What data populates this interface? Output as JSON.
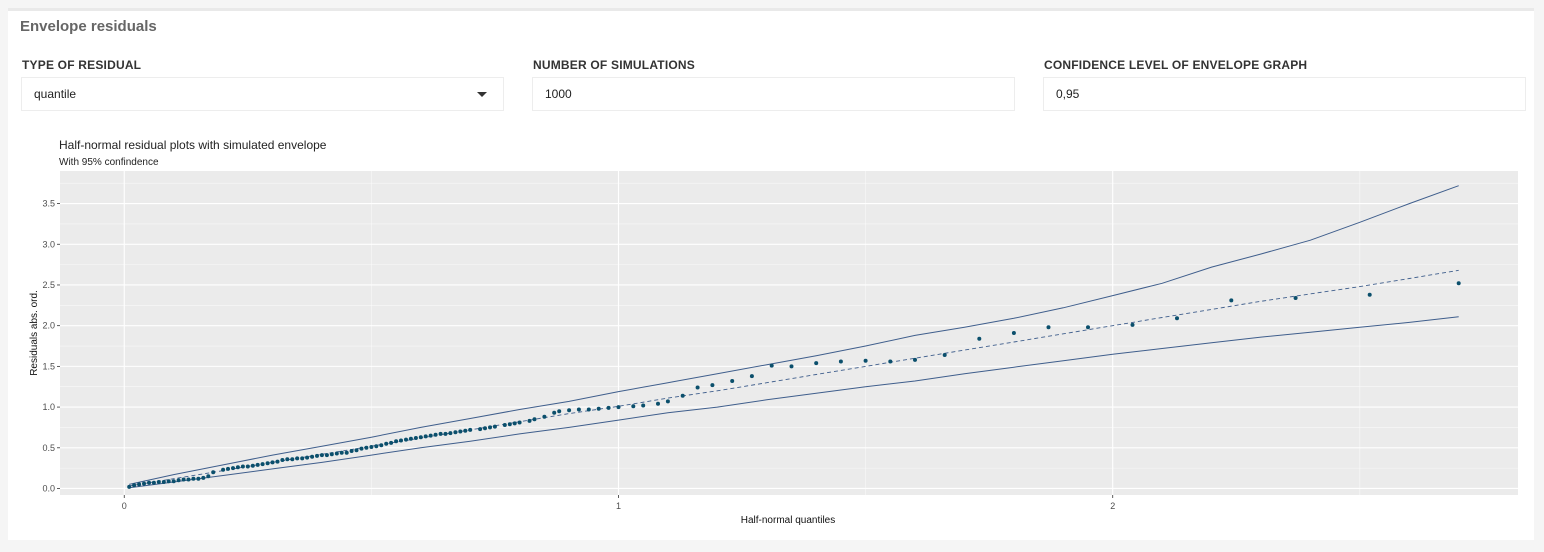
{
  "panel": {
    "title": "Envelope residuals"
  },
  "controls": {
    "residual_type": {
      "label": "TYPE OF RESIDUAL",
      "value": "quantile"
    },
    "simulations": {
      "label": "NUMBER OF SIMULATIONS",
      "value": "1000"
    },
    "confidence": {
      "label": "CONFIDENCE LEVEL OF ENVELOPE GRAPH",
      "value": "0,95"
    }
  },
  "chart_data": {
    "type": "scatter",
    "title": "Half-normal residual plots with simulated envelope",
    "subtitle": "With 95% confindence",
    "xlabel": "Half-normal quantiles",
    "ylabel": "Residuals abs. ord.",
    "xlim": [
      -0.13,
      2.82
    ],
    "ylim": [
      -0.08,
      3.9
    ],
    "x_ticks": [
      0,
      1,
      2
    ],
    "x_tick_labels": [
      "0",
      "1",
      "2"
    ],
    "y_ticks": [
      0,
      0.5,
      1,
      1.5,
      2,
      2.5,
      3,
      3.5
    ],
    "y_tick_labels": [
      "0.0",
      "0.5",
      "1.0",
      "1.5",
      "2.0",
      "2.5",
      "3.0",
      "3.5"
    ],
    "grid": true,
    "colors": {
      "points": "#0b4f6c",
      "envelope": "#3f5e8c",
      "panel_bg": "#ebebeb",
      "grid": "#ffffff"
    },
    "points": {
      "x": [
        0.01,
        0.02,
        0.03,
        0.04,
        0.05,
        0.06,
        0.07,
        0.08,
        0.09,
        0.1,
        0.11,
        0.12,
        0.13,
        0.14,
        0.15,
        0.16,
        0.17,
        0.18,
        0.2,
        0.21,
        0.22,
        0.23,
        0.24,
        0.25,
        0.26,
        0.27,
        0.28,
        0.29,
        0.3,
        0.31,
        0.32,
        0.33,
        0.34,
        0.35,
        0.36,
        0.37,
        0.38,
        0.39,
        0.4,
        0.41,
        0.42,
        0.43,
        0.44,
        0.45,
        0.46,
        0.47,
        0.48,
        0.49,
        0.5,
        0.51,
        0.52,
        0.53,
        0.54,
        0.55,
        0.56,
        0.57,
        0.58,
        0.59,
        0.6,
        0.61,
        0.62,
        0.63,
        0.64,
        0.65,
        0.66,
        0.67,
        0.68,
        0.69,
        0.7,
        0.72,
        0.73,
        0.74,
        0.75,
        0.77,
        0.78,
        0.79,
        0.8,
        0.82,
        0.83,
        0.85,
        0.87,
        0.88,
        0.9,
        0.92,
        0.94,
        0.96,
        0.98,
        1.0,
        1.03,
        1.05,
        1.08,
        1.1,
        1.13,
        1.16,
        1.19,
        1.23,
        1.27,
        1.31,
        1.35,
        1.4,
        1.45,
        1.5,
        1.55,
        1.6,
        1.66,
        1.73,
        1.8,
        1.87,
        1.95,
        2.04,
        2.13,
        2.24,
        2.37,
        2.52,
        2.7
      ],
      "y": [
        0.02,
        0.04,
        0.05,
        0.06,
        0.07,
        0.07,
        0.08,
        0.08,
        0.09,
        0.09,
        0.1,
        0.11,
        0.11,
        0.12,
        0.12,
        0.13,
        0.15,
        0.2,
        0.23,
        0.24,
        0.25,
        0.26,
        0.27,
        0.27,
        0.28,
        0.29,
        0.3,
        0.31,
        0.32,
        0.33,
        0.35,
        0.36,
        0.36,
        0.37,
        0.37,
        0.38,
        0.39,
        0.4,
        0.41,
        0.41,
        0.42,
        0.43,
        0.44,
        0.44,
        0.46,
        0.47,
        0.49,
        0.5,
        0.51,
        0.52,
        0.53,
        0.55,
        0.56,
        0.58,
        0.59,
        0.6,
        0.61,
        0.62,
        0.63,
        0.64,
        0.65,
        0.66,
        0.67,
        0.67,
        0.68,
        0.69,
        0.7,
        0.71,
        0.72,
        0.73,
        0.74,
        0.75,
        0.76,
        0.78,
        0.79,
        0.8,
        0.81,
        0.83,
        0.85,
        0.88,
        0.93,
        0.95,
        0.96,
        0.97,
        0.97,
        0.98,
        0.99,
        1.0,
        1.01,
        1.02,
        1.04,
        1.07,
        1.14,
        1.24,
        1.27,
        1.32,
        1.38,
        1.51,
        1.5,
        1.54,
        1.56,
        1.57,
        1.56,
        1.58,
        1.64,
        1.84,
        1.91,
        1.98,
        1.98,
        2.01,
        2.09,
        2.31,
        2.34,
        2.38,
        2.52
      ]
    },
    "envelope": {
      "x": [
        0.01,
        0.1,
        0.2,
        0.3,
        0.4,
        0.5,
        0.6,
        0.7,
        0.8,
        0.9,
        1.0,
        1.1,
        1.2,
        1.3,
        1.4,
        1.5,
        1.6,
        1.7,
        1.8,
        1.9,
        2.0,
        2.1,
        2.2,
        2.3,
        2.4,
        2.5,
        2.6,
        2.7
      ],
      "upper": [
        0.05,
        0.17,
        0.29,
        0.41,
        0.52,
        0.63,
        0.75,
        0.86,
        0.97,
        1.07,
        1.19,
        1.3,
        1.41,
        1.52,
        1.63,
        1.75,
        1.88,
        1.98,
        2.09,
        2.22,
        2.37,
        2.52,
        2.72,
        2.88,
        3.05,
        3.27,
        3.5,
        3.72
      ],
      "median": [
        0.03,
        0.12,
        0.22,
        0.32,
        0.42,
        0.52,
        0.62,
        0.72,
        0.82,
        0.92,
        1.01,
        1.11,
        1.2,
        1.3,
        1.4,
        1.5,
        1.6,
        1.7,
        1.8,
        1.9,
        2.0,
        2.1,
        2.2,
        2.3,
        2.39,
        2.48,
        2.58,
        2.68
      ],
      "lower": [
        0.01,
        0.08,
        0.16,
        0.24,
        0.32,
        0.41,
        0.5,
        0.58,
        0.67,
        0.75,
        0.84,
        0.93,
        1.0,
        1.09,
        1.17,
        1.25,
        1.32,
        1.41,
        1.49,
        1.57,
        1.65,
        1.72,
        1.79,
        1.86,
        1.92,
        1.98,
        2.04,
        2.11
      ]
    }
  }
}
